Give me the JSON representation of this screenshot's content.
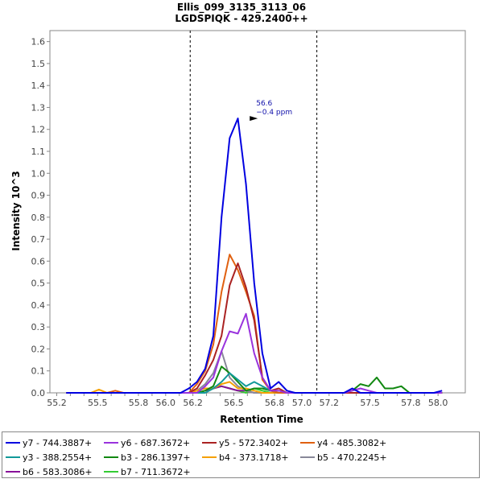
{
  "chart_data": {
    "type": "line",
    "title": "Ellis_099_3135_3113_06",
    "subtitle": "LGDSPIQK - 429.2400++",
    "xlabel": "Retention Time",
    "ylabel": "Intensity 10^3",
    "xlim": [
      55.15,
      58.2
    ],
    "ylim": [
      0,
      1.65
    ],
    "x_ticks": [
      "55.2",
      "55.3",
      "55.4",
      "55.5",
      "55.6",
      "55.7",
      "55.8",
      "55.9",
      "56.0",
      "56.1",
      "56.2",
      "56.3",
      "56.4",
      "56.5",
      "56.6",
      "56.7",
      "56.8",
      "56.9",
      "57.0",
      "57.1",
      "57.2",
      "57.3",
      "57.4",
      "57.5",
      "57.6",
      "57.7",
      "57.8",
      "57.9",
      "58.0"
    ],
    "x_tick_labels_shown": [
      "55.2",
      "55.5",
      "55.8",
      "56.0",
      "56.2",
      "56.5",
      "56.8",
      "57.0",
      "57.2",
      "57.5",
      "57.8",
      "58.0"
    ],
    "y_ticks": [
      "0.0",
      "0.1",
      "0.2",
      "0.3",
      "0.4",
      "0.5",
      "0.6",
      "0.7",
      "0.8",
      "0.9",
      "1.0",
      "1.1",
      "1.2",
      "1.3",
      "1.4",
      "1.5",
      "1.6"
    ],
    "integration_boundaries": [
      56.18,
      57.11
    ],
    "annotation": {
      "rt": "56.6",
      "ppm": "−0.4 ppm",
      "x": 56.7,
      "y": 1.25
    },
    "x": [
      55.27,
      55.33,
      55.39,
      55.45,
      55.51,
      55.57,
      55.63,
      55.69,
      55.75,
      55.81,
      55.87,
      55.93,
      55.99,
      56.05,
      56.11,
      56.17,
      56.23,
      56.29,
      56.35,
      56.41,
      56.47,
      56.53,
      56.59,
      56.65,
      56.71,
      56.77,
      56.83,
      56.89,
      56.95,
      57.01,
      57.07,
      57.13,
      57.19,
      57.25,
      57.31,
      57.37,
      57.43,
      57.49,
      57.55,
      57.61,
      57.67,
      57.73,
      57.79,
      57.85,
      57.91,
      57.97,
      58.03
    ],
    "series": [
      {
        "name": "y7 - 744.3887+",
        "color": "#0000e0",
        "values": [
          0,
          0,
          0,
          0,
          0,
          0,
          0,
          0,
          0,
          0,
          0,
          0,
          0,
          0,
          0,
          0.02,
          0.05,
          0.11,
          0.26,
          0.8,
          1.16,
          1.25,
          0.95,
          0.5,
          0.18,
          0.02,
          0.05,
          0.01,
          0,
          0,
          0,
          0,
          0,
          0,
          0,
          0.02,
          0,
          0,
          0,
          0,
          0,
          0,
          0,
          0,
          0,
          0,
          0.01
        ]
      },
      {
        "name": "y6 - 687.3672+",
        "color": "#9933dd",
        "values": [
          0,
          0,
          0,
          0,
          0,
          0,
          0,
          0,
          0,
          0,
          0,
          0,
          0,
          0,
          0,
          0,
          0,
          0.03,
          0.07,
          0.19,
          0.28,
          0.27,
          0.36,
          0.18,
          0.07,
          0.01,
          0.01,
          0,
          0,
          0,
          0,
          0,
          0,
          0,
          0,
          0.01,
          0.02,
          0.01,
          0,
          0,
          0,
          0,
          0,
          0,
          0,
          0,
          0
        ]
      },
      {
        "name": "y5 - 572.3402+",
        "color": "#aa2222",
        "values": [
          0,
          0,
          0,
          0,
          0,
          0,
          0,
          0,
          0,
          0,
          0,
          0,
          0,
          0,
          0,
          0,
          0.02,
          0.08,
          0.15,
          0.26,
          0.49,
          0.59,
          0.48,
          0.33,
          0.07,
          0.01,
          0.02,
          0,
          0,
          0,
          0,
          0,
          0,
          0,
          0,
          0,
          0,
          0,
          0,
          0,
          0,
          0,
          0,
          0,
          0,
          0,
          0
        ]
      },
      {
        "name": "y4 - 485.3082+",
        "color": "#e06010",
        "values": [
          0,
          0,
          0,
          0,
          0,
          0,
          0.01,
          0,
          0,
          0,
          0,
          0,
          0,
          0,
          0,
          0,
          0.04,
          0.1,
          0.22,
          0.46,
          0.63,
          0.56,
          0.46,
          0.35,
          0.06,
          0.01,
          0,
          0,
          0,
          0,
          0,
          0,
          0,
          0,
          0,
          0,
          0,
          0,
          0,
          0,
          0,
          0,
          0,
          0,
          0,
          0,
          0
        ]
      },
      {
        "name": "y3 - 388.2554+",
        "color": "#119999",
        "values": [
          0,
          0,
          0,
          0,
          0,
          0,
          0,
          0,
          0,
          0,
          0,
          0,
          0,
          0,
          0,
          0,
          0,
          0,
          0.02,
          0.05,
          0.09,
          0.06,
          0.03,
          0.05,
          0.03,
          0.01,
          0,
          0,
          0,
          0,
          0,
          0,
          0,
          0,
          0,
          0,
          0,
          0,
          0,
          0,
          0,
          0,
          0,
          0,
          0,
          0,
          0
        ]
      },
      {
        "name": "b3 - 286.1397+",
        "color": "#118811",
        "values": [
          0,
          0,
          0,
          0,
          0,
          0,
          0,
          0,
          0,
          0,
          0,
          0,
          0,
          0,
          0,
          0,
          0,
          0.01,
          0.03,
          0.12,
          0.09,
          0.05,
          0.01,
          0.02,
          0.02,
          0.01,
          0,
          0,
          0,
          0,
          0,
          0,
          0,
          0,
          0,
          0.01,
          0.04,
          0.03,
          0.07,
          0.02,
          0.02,
          0.03,
          0,
          0,
          0,
          0,
          0
        ]
      },
      {
        "name": "b4 - 373.1718+",
        "color": "#f5a000",
        "values": [
          0,
          0,
          0,
          0,
          0.015,
          0,
          0,
          0,
          0,
          0,
          0,
          0,
          0,
          0,
          0,
          0,
          0.01,
          0.02,
          0.02,
          0.04,
          0.05,
          0.02,
          0.02,
          0.01,
          0,
          0,
          0,
          0,
          0,
          0,
          0,
          0,
          0,
          0,
          0,
          0,
          0,
          0,
          0,
          0,
          0,
          0,
          0,
          0,
          0,
          0,
          0
        ]
      },
      {
        "name": "b5 - 470.2245+",
        "color": "#888899",
        "values": [
          0,
          0,
          0,
          0,
          0,
          0,
          0,
          0,
          0,
          0,
          0,
          0,
          0,
          0,
          0,
          0,
          0.01,
          0.04,
          0.09,
          0.19,
          0.07,
          0.03,
          0.01,
          0,
          0,
          0,
          0,
          0,
          0,
          0,
          0,
          0,
          0,
          0,
          0,
          0,
          0,
          0,
          0,
          0,
          0,
          0,
          0,
          0,
          0,
          0,
          0
        ]
      },
      {
        "name": "b6 - 583.3086+",
        "color": "#881199",
        "values": [
          0,
          0,
          0,
          0,
          0,
          0,
          0,
          0,
          0,
          0,
          0,
          0,
          0,
          0,
          0,
          0,
          0,
          0.01,
          0.02,
          0.03,
          0.02,
          0.01,
          0.01,
          0,
          0,
          0,
          0,
          0,
          0,
          0,
          0,
          0,
          0,
          0,
          0,
          0,
          0,
          0,
          0,
          0,
          0,
          0,
          0,
          0,
          0,
          0,
          0
        ]
      },
      {
        "name": "b7 - 711.3672+",
        "color": "#33cc33",
        "values": [
          0,
          0,
          0,
          0,
          0,
          0,
          0,
          0,
          0,
          0,
          0,
          0,
          0,
          0,
          0,
          0,
          0,
          0.01,
          0.02,
          0.03,
          0.02,
          0.01,
          0,
          0.02,
          0.01,
          0,
          0,
          0,
          0,
          0,
          0,
          0,
          0,
          0,
          0,
          0,
          0,
          0,
          0,
          0,
          0,
          0,
          0,
          0,
          0,
          0,
          0
        ]
      }
    ]
  }
}
